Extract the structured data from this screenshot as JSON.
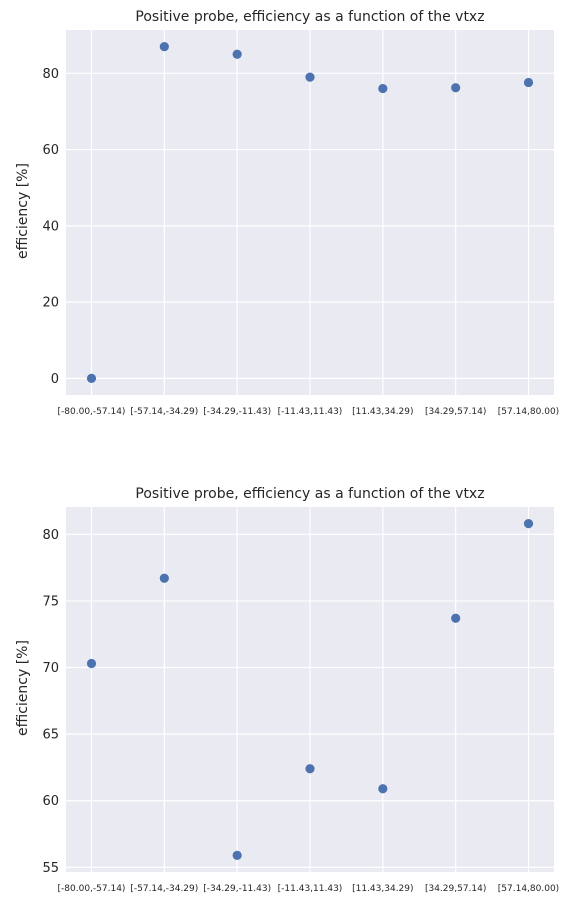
{
  "chart_data": [
    {
      "type": "scatter",
      "title": "Positive probe, efficiency as a function of the vtxz",
      "xlabel": "",
      "ylabel": "efficiency [%]",
      "categories": [
        "[-80.00,-57.14)",
        "[-57.14,-34.29)",
        "[-34.29,-11.43)",
        "[-11.43,11.43)",
        "[11.43,34.29)",
        "[34.29,57.14)",
        "[57.14,80.00)"
      ],
      "values": [
        0.0,
        87.0,
        85.0,
        79.0,
        76.0,
        76.2,
        77.6
      ],
      "yticks": [
        0,
        20,
        40,
        60,
        80
      ],
      "ylim": [
        -4.35,
        91.35
      ],
      "grid": true,
      "marker_color": "#4c72b0",
      "background_color": "#eaeaf2"
    },
    {
      "type": "scatter",
      "title": "Positive probe, efficiency as a function of the vtxz",
      "xlabel": "",
      "ylabel": "efficiency [%]",
      "categories": [
        "[-80.00,-57.14)",
        "[-57.14,-34.29)",
        "[-34.29,-11.43)",
        "[-11.43,11.43)",
        "[11.43,34.29)",
        "[34.29,57.14)",
        "[57.14,80.00)"
      ],
      "values": [
        70.3,
        76.7,
        55.9,
        62.4,
        60.9,
        73.7,
        80.8
      ],
      "yticks": [
        55,
        60,
        65,
        70,
        75,
        80
      ],
      "ylim": [
        54.65,
        82.05
      ],
      "grid": true,
      "marker_color": "#4c72b0",
      "background_color": "#eaeaf2"
    }
  ]
}
